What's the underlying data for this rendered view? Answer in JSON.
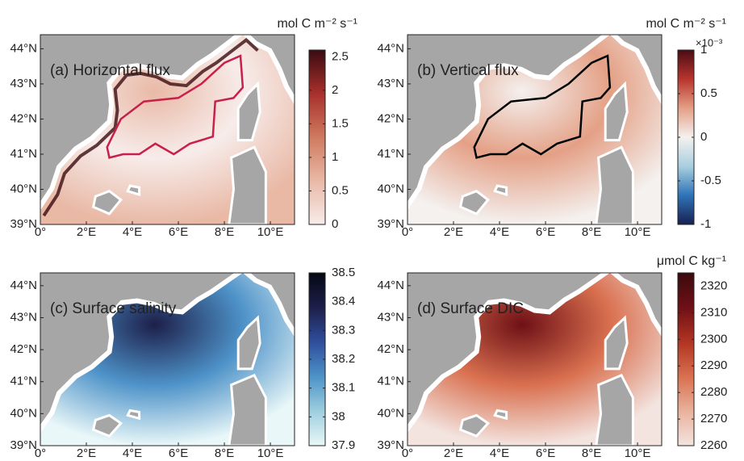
{
  "panels": [
    {
      "title": "(a) Horizontal flux",
      "unit": "mol C m⁻² s⁻¹",
      "colorbar": {
        "lim": [
          0,
          2.6
        ],
        "ticks": [
          0,
          0.5,
          1,
          1.5,
          2,
          2.5
        ],
        "colors": [
          "#f7ecea",
          "#e9b9a6",
          "#cf7a5f",
          "#a8302d",
          "#3b0b10"
        ]
      }
    },
    {
      "title": "(b) Vertical flux",
      "unit": "mol C m⁻² s⁻¹",
      "multiplier": "×10⁻³",
      "colorbar": {
        "lim": [
          -1,
          1
        ],
        "ticks": [
          -1,
          -0.5,
          0,
          0.5,
          1
        ],
        "colors": [
          "#18204f",
          "#2e73b8",
          "#a9cfde",
          "#f4f1ef",
          "#e4a086",
          "#b8352e",
          "#4a0c14"
        ]
      }
    },
    {
      "title": "(c) Surface salinity",
      "colorbar": {
        "lim": [
          37.9,
          38.5
        ],
        "ticks": [
          37.9,
          38,
          38.1,
          38.2,
          38.3,
          38.4,
          38.5
        ],
        "colors": [
          "#e9f7f8",
          "#9dcfdf",
          "#4d92c8",
          "#2f4e9d",
          "#1d1f4a",
          "#050812"
        ]
      }
    },
    {
      "title": "(d) Surface DIC",
      "unit": "μmol C kg⁻¹",
      "colorbar": {
        "lim": [
          2260,
          2325
        ],
        "ticks": [
          2260,
          2270,
          2280,
          2290,
          2300,
          2310,
          2320
        ],
        "colors": [
          "#f3e4e0",
          "#e9b29c",
          "#d9704f",
          "#b23422",
          "#6e1016",
          "#3b0a0c"
        ]
      }
    }
  ],
  "lon_ticks": [
    {
      "value": 0,
      "label": "0°"
    },
    {
      "value": 2,
      "label": "2°E"
    },
    {
      "value": 4,
      "label": "4°E"
    },
    {
      "value": 6,
      "label": "6°E"
    },
    {
      "value": 8,
      "label": "8°E"
    },
    {
      "value": 10,
      "label": "10°E"
    }
  ],
  "lat_ticks": [
    {
      "value": 39,
      "label": "39°N"
    },
    {
      "value": 40,
      "label": "40°N"
    },
    {
      "value": 41,
      "label": "41°N"
    },
    {
      "value": 42,
      "label": "42°N"
    },
    {
      "value": 43,
      "label": "43°N"
    },
    {
      "value": 44,
      "label": "44°N"
    }
  ]
}
